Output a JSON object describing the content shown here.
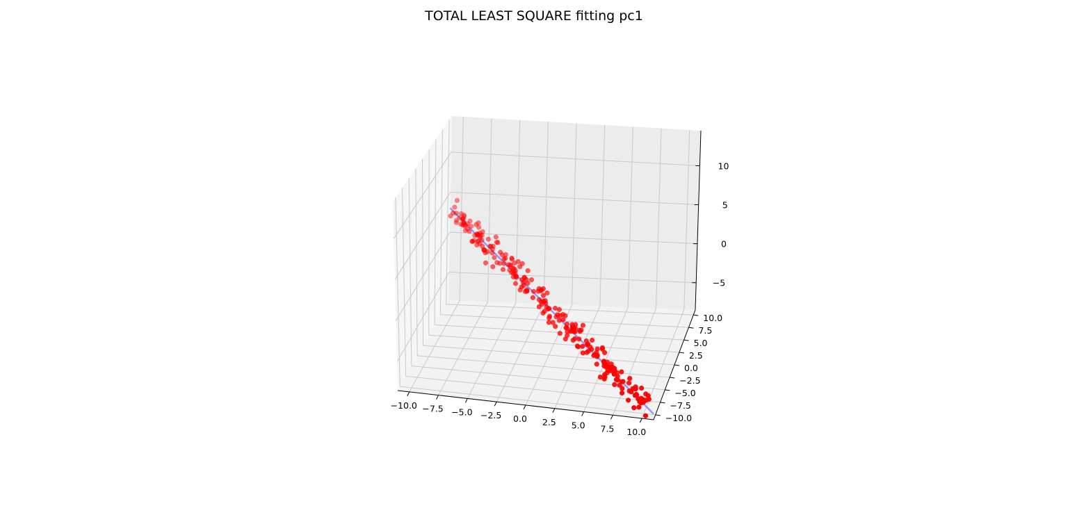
{
  "chart_data": {
    "type": "scatter",
    "projection": "3d",
    "title": "TOTAL LEAST SQUARE fitting pc1",
    "x_ticks": [
      "−10.0",
      "−7.5",
      "−5.0",
      "−2.5",
      "0.0",
      "2.5",
      "5.0",
      "7.5",
      "10.0"
    ],
    "y_ticks": [
      "−10.0",
      "−7.5",
      "−5.0",
      "−2.5",
      "0.0",
      "2.5",
      "5.0",
      "7.5",
      "10.0"
    ],
    "z_ticks": [
      "−5",
      "0",
      "5",
      "10"
    ],
    "xlim": [
      -11,
      11
    ],
    "ylim": [
      -11,
      11
    ],
    "zlim": [
      -8.5,
      14.5
    ],
    "grid": true,
    "series": [
      {
        "kind": "scatter",
        "color": "#ff0000",
        "points": []
      },
      {
        "kind": "line",
        "color": "#8080ff",
        "points": [
          [
            -11,
            11,
            3.0
          ],
          [
            11,
            -11,
            -7.8
          ]
        ]
      }
    ],
    "point_trend": {
      "count": 260,
      "x_range": [
        -10.5,
        10.5
      ],
      "y_from_x": -1.0,
      "z_at_x_min": 2.6,
      "z_at_x_max": -7.6
    }
  }
}
